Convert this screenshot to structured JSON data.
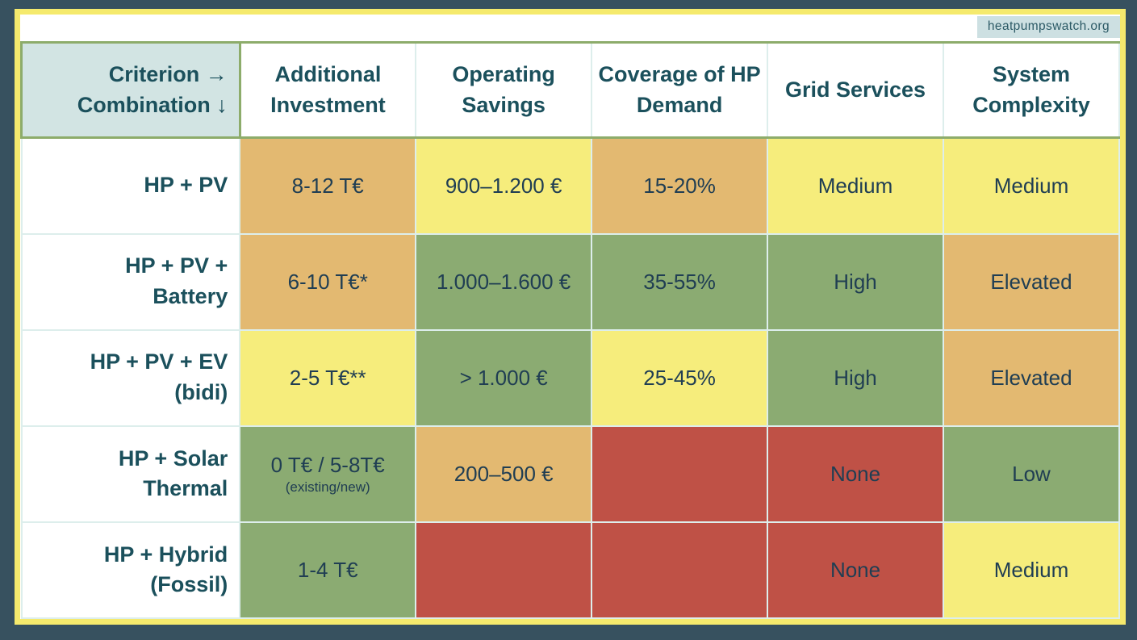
{
  "badge": {
    "text": "heatpumpswatch.org"
  },
  "palette": {
    "outer_bg": "#37515f",
    "frame_yellow": "#f5ea6d",
    "panel_bg": "#ffffff",
    "grid_green": "#8dac6b",
    "divider": "#ddeeec",
    "corner_bg": "#d2e4e3",
    "badge_bg": "#cde0e2",
    "heading_text": "#1b505c",
    "cell_text": "#203e53",
    "tan": "#e3b971",
    "yellow": "#f6ed7c",
    "green": "#8bab72",
    "red": "#bf5146"
  },
  "chart_data": {
    "type": "table",
    "corner": {
      "line1": "Criterion →",
      "line2": "Combination ↓"
    },
    "columns": [
      "Additional Investment",
      "Operating Savings",
      "Coverage of HP Demand",
      "Grid Services",
      "System Complexity"
    ],
    "rows": [
      {
        "label": "HP + PV",
        "label_lines": [
          "HP + PV"
        ],
        "cells": [
          {
            "text": "8-12 T€",
            "tone": "tan"
          },
          {
            "text": "900–1.200 €",
            "tone": "yellow"
          },
          {
            "text": "15-20%",
            "tone": "tan"
          },
          {
            "text": "Medium",
            "tone": "yellow"
          },
          {
            "text": "Medium",
            "tone": "yellow"
          }
        ]
      },
      {
        "label": "HP + PV + Battery",
        "label_lines": [
          "HP + PV +",
          "Battery"
        ],
        "cells": [
          {
            "text": "6-10 T€*",
            "tone": "tan"
          },
          {
            "text": "1.000–1.600 €",
            "tone": "green"
          },
          {
            "text": "35-55%",
            "tone": "green"
          },
          {
            "text": "High",
            "tone": "green"
          },
          {
            "text": "Elevated",
            "tone": "tan"
          }
        ]
      },
      {
        "label": "HP + PV + EV (bidi)",
        "label_lines": [
          "HP + PV + EV",
          "(bidi)"
        ],
        "cells": [
          {
            "text": "2-5 T€**",
            "tone": "yellow"
          },
          {
            "text": "> 1.000 €",
            "tone": "green"
          },
          {
            "text": "25-45%",
            "tone": "yellow"
          },
          {
            "text": "High",
            "tone": "green"
          },
          {
            "text": "Elevated",
            "tone": "tan"
          }
        ]
      },
      {
        "label": "HP + Solar Thermal",
        "label_lines": [
          "HP + Solar",
          "Thermal"
        ],
        "cells": [
          {
            "text": "0 T€ / 5-8T€",
            "sub": "(existing/new)",
            "tone": "green"
          },
          {
            "text": "200–500 €",
            "tone": "tan"
          },
          {
            "text": "",
            "tone": "red"
          },
          {
            "text": "None",
            "tone": "red"
          },
          {
            "text": "Low",
            "tone": "green"
          }
        ]
      },
      {
        "label": "HP + Hybrid (Fossil)",
        "label_lines": [
          "HP + Hybrid",
          "(Fossil)"
        ],
        "cells": [
          {
            "text": "1-4 T€",
            "tone": "green"
          },
          {
            "text": "",
            "tone": "red"
          },
          {
            "text": "",
            "tone": "red"
          },
          {
            "text": "None",
            "tone": "red"
          },
          {
            "text": "Medium",
            "tone": "yellow"
          }
        ]
      }
    ]
  }
}
